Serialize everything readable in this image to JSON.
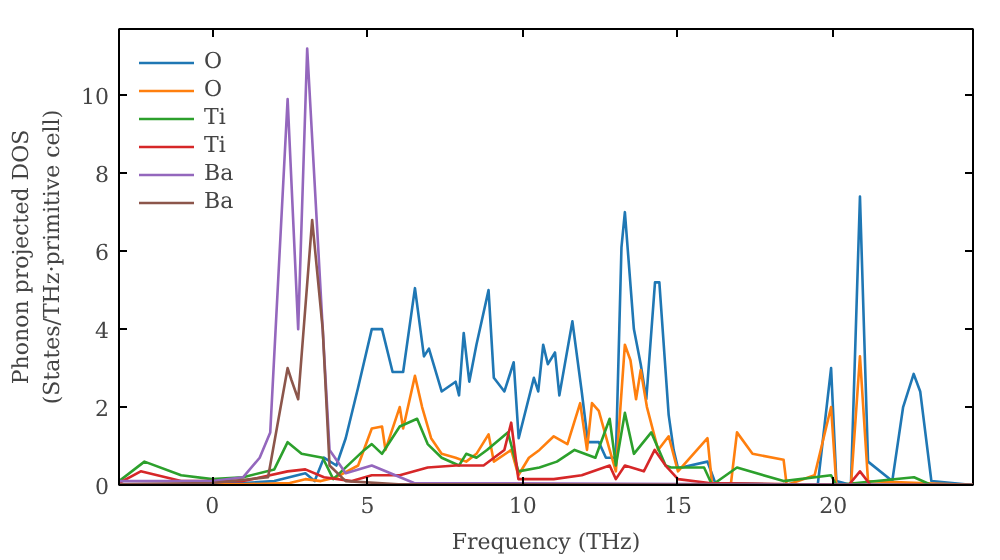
{
  "chart_data": {
    "type": "line",
    "xlabel": "Frequency (THz)",
    "ylabel": "Phonon projected DOS\n(States/THz·primitive cell)",
    "xlim": [
      -3,
      24.5
    ],
    "ylim": [
      0,
      11.7
    ],
    "xticks": [
      0,
      5,
      10,
      15,
      20
    ],
    "yticks": [
      0,
      2,
      4,
      6,
      8,
      10
    ],
    "grid": false,
    "legend": "top left",
    "marker": "none",
    "line_style": "solid",
    "series": [
      {
        "name": "O",
        "color": "#1f77b4",
        "x": [
          -3,
          -1,
          1,
          2,
          3,
          3.3,
          3.6,
          4.0,
          4.3,
          4.7,
          5.14,
          5.47,
          5.81,
          6.15,
          6.53,
          6.82,
          6.98,
          7.39,
          7.84,
          7.95,
          8.1,
          8.28,
          8.51,
          8.9,
          9.07,
          9.41,
          9.71,
          9.87,
          10.36,
          10.5,
          10.66,
          10.81,
          11.04,
          11.18,
          11.6,
          11.9,
          12.1,
          12.45,
          12.68,
          13.0,
          13.18,
          13.29,
          13.58,
          13.8,
          13.98,
          14.26,
          14.4,
          14.7,
          14.86,
          15.0,
          15.95,
          16.2,
          19.5,
          19.93,
          20.1,
          20.57,
          20.86,
          21.12,
          21.9,
          22.25,
          22.59,
          22.8,
          23.16,
          24.5
        ],
        "values": [
          0,
          0.02,
          0.05,
          0.1,
          0.3,
          0.1,
          0.7,
          0.5,
          1.2,
          2.5,
          4.0,
          4.0,
          2.9,
          2.9,
          5.05,
          3.3,
          3.5,
          2.4,
          2.65,
          2.3,
          3.9,
          2.65,
          3.6,
          5.0,
          2.75,
          2.4,
          3.15,
          1.2,
          2.75,
          2.4,
          3.6,
          3.1,
          3.4,
          2.3,
          4.2,
          2.4,
          1.1,
          1.1,
          0.7,
          0.7,
          6.1,
          7.0,
          4.0,
          3.1,
          2.2,
          5.2,
          5.2,
          1.8,
          0.9,
          0.43,
          0.6,
          0.05,
          0,
          3.0,
          0.1,
          0,
          7.4,
          0.6,
          0.1,
          2.0,
          2.85,
          2.4,
          0.1,
          0
        ]
      },
      {
        "name": "O",
        "color": "#ff7f0e",
        "x": [
          -3,
          1,
          2.5,
          3.0,
          3.5,
          4.0,
          4.7,
          5.14,
          5.47,
          5.58,
          6.04,
          6.15,
          6.53,
          6.76,
          7.05,
          7.39,
          7.84,
          8.18,
          8.51,
          8.9,
          9.07,
          9.63,
          9.86,
          10.2,
          10.54,
          11.0,
          11.44,
          11.85,
          12.07,
          12.23,
          12.45,
          12.8,
          13.0,
          13.29,
          13.47,
          13.65,
          13.8,
          14.0,
          14.36,
          14.7,
          15.0,
          15.95,
          16.1,
          16.7,
          16.9,
          17.4,
          18.4,
          18.5,
          19.4,
          19.93,
          20.1,
          20.57,
          20.86,
          21.12,
          24.5
        ],
        "values": [
          0.02,
          0.02,
          0.05,
          0.15,
          0.1,
          0.2,
          0.5,
          1.45,
          1.5,
          0.9,
          2.0,
          1.45,
          2.8,
          2.0,
          1.2,
          0.8,
          0.7,
          0.6,
          0.8,
          1.3,
          0.6,
          0.9,
          0.25,
          0.7,
          0.9,
          1.25,
          1.05,
          2.1,
          0.9,
          2.1,
          1.9,
          0.9,
          0.35,
          3.6,
          3.2,
          2.2,
          2.95,
          2.0,
          0.9,
          1.25,
          0.35,
          1.2,
          0,
          0,
          1.35,
          0.8,
          0.65,
          0,
          0.25,
          2.0,
          0,
          0,
          3.3,
          0.1,
          0
        ]
      },
      {
        "name": "Ti",
        "color": "#2ca02c",
        "x": [
          -3,
          -2.18,
          -1,
          0,
          1,
          2.0,
          2.43,
          2.88,
          3.56,
          3.9,
          4.9,
          5.14,
          5.47,
          6.04,
          6.6,
          6.94,
          7.39,
          7.95,
          8.18,
          8.51,
          8.85,
          9.52,
          9.86,
          10.54,
          11.1,
          11.67,
          12.34,
          12.8,
          13.0,
          13.29,
          13.58,
          14.14,
          14.6,
          14.77,
          15.84,
          16.1,
          16.9,
          18.4,
          19.93,
          20.1,
          22.6,
          23.16,
          24.5
        ],
        "values": [
          0.1,
          0.6,
          0.25,
          0.15,
          0.2,
          0.4,
          1.1,
          0.8,
          0.7,
          0.15,
          0.9,
          1.05,
          0.8,
          1.5,
          1.7,
          1.05,
          0.7,
          0.5,
          0.8,
          0.7,
          0.9,
          1.35,
          0.35,
          0.45,
          0.6,
          0.9,
          0.7,
          1.7,
          0.5,
          1.85,
          0.8,
          1.35,
          0.5,
          0.45,
          0.45,
          0,
          0.45,
          0.1,
          0.25,
          0,
          0.2,
          0,
          0
        ]
      },
      {
        "name": "Ti",
        "color": "#d62728",
        "x": [
          -3,
          -2.3,
          -1,
          1,
          2.43,
          3.0,
          3.6,
          4.5,
          5.14,
          6.04,
          6.94,
          7.84,
          8.74,
          9.41,
          9.63,
          9.86,
          11.0,
          11.9,
          12.8,
          13.0,
          13.29,
          13.9,
          14.25,
          14.6,
          15.0,
          16.0,
          20.5,
          20.86,
          21.2,
          24.5
        ],
        "values": [
          0.05,
          0.35,
          0.1,
          0.1,
          0.35,
          0.4,
          0.2,
          0.1,
          0.25,
          0.25,
          0.45,
          0.5,
          0.5,
          0.9,
          1.6,
          0.15,
          0.15,
          0.25,
          0.5,
          0.15,
          0.5,
          0.35,
          0.9,
          0.5,
          0.15,
          0.05,
          0,
          0.35,
          0,
          0
        ]
      },
      {
        "name": "Ba",
        "color": "#9467bd",
        "x": [
          -3,
          0,
          1,
          1.53,
          1.87,
          2.43,
          2.77,
          3.06,
          3.56,
          3.78,
          4.3,
          5.14,
          6.5,
          24.5
        ],
        "values": [
          0.1,
          0.1,
          0.2,
          0.7,
          1.35,
          9.9,
          4.0,
          11.2,
          4.0,
          0.9,
          0.3,
          0.5,
          0.05,
          0
        ]
      },
      {
        "name": "Ba",
        "color": "#8c564b",
        "x": [
          -3,
          0,
          1.8,
          2.43,
          2.55,
          2.77,
          3.22,
          3.56,
          3.78,
          4.3,
          6.0,
          24.5
        ],
        "values": [
          0.02,
          0.05,
          0.2,
          3.0,
          2.7,
          2.2,
          6.8,
          4.0,
          0.5,
          0.1,
          0.02,
          0
        ]
      }
    ]
  }
}
